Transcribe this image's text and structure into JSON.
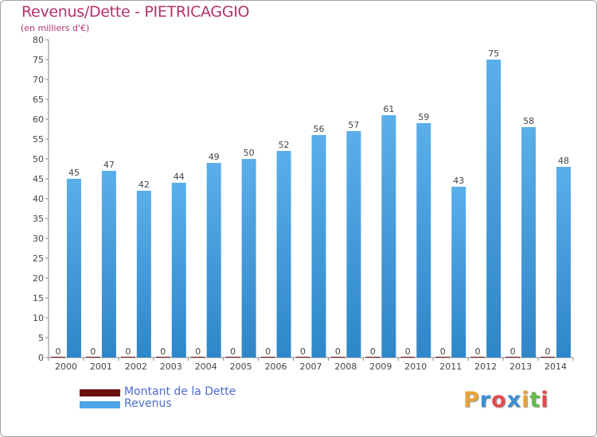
{
  "title": "Revenus/Dette - PIETRICAGGIO",
  "subtitle": "(en milliers d'€)",
  "legend": [
    {
      "label": "Montant de la Dette",
      "color": "#6b0f0f"
    },
    {
      "label": "Revenus",
      "color": "#4da6e8"
    }
  ],
  "logo": {
    "text": "Proxiti",
    "colors": [
      "#e8a33a",
      "#3a8fd6",
      "#e34c4c",
      "#3a8fd6",
      "#e8a33a",
      "#67b84b",
      "#e34c4c"
    ]
  },
  "chart_data": {
    "type": "bar",
    "categories": [
      "2000",
      "2001",
      "2002",
      "2003",
      "2004",
      "2005",
      "2006",
      "2007",
      "2008",
      "2009",
      "2010",
      "2011",
      "2012",
      "2013",
      "2014"
    ],
    "series": [
      {
        "name": "Montant de la Dette",
        "values": [
          0,
          0,
          0,
          0,
          0,
          0,
          0,
          0,
          0,
          0,
          0,
          0,
          0,
          0,
          0
        ],
        "color": "#6b0f0f"
      },
      {
        "name": "Revenus",
        "values": [
          45,
          47,
          42,
          44,
          49,
          50,
          52,
          56,
          57,
          61,
          59,
          43,
          75,
          58,
          48
        ],
        "color": "#4da6e8"
      }
    ],
    "ylim": [
      0,
      80
    ],
    "yticks": [
      0,
      5,
      10,
      15,
      20,
      25,
      30,
      35,
      40,
      45,
      50,
      55,
      60,
      65,
      70,
      75,
      80
    ],
    "title": "Revenus/Dette - PIETRICAGGIO",
    "ylabel": "(en milliers d'€)",
    "xlabel": "",
    "grid": false
  }
}
